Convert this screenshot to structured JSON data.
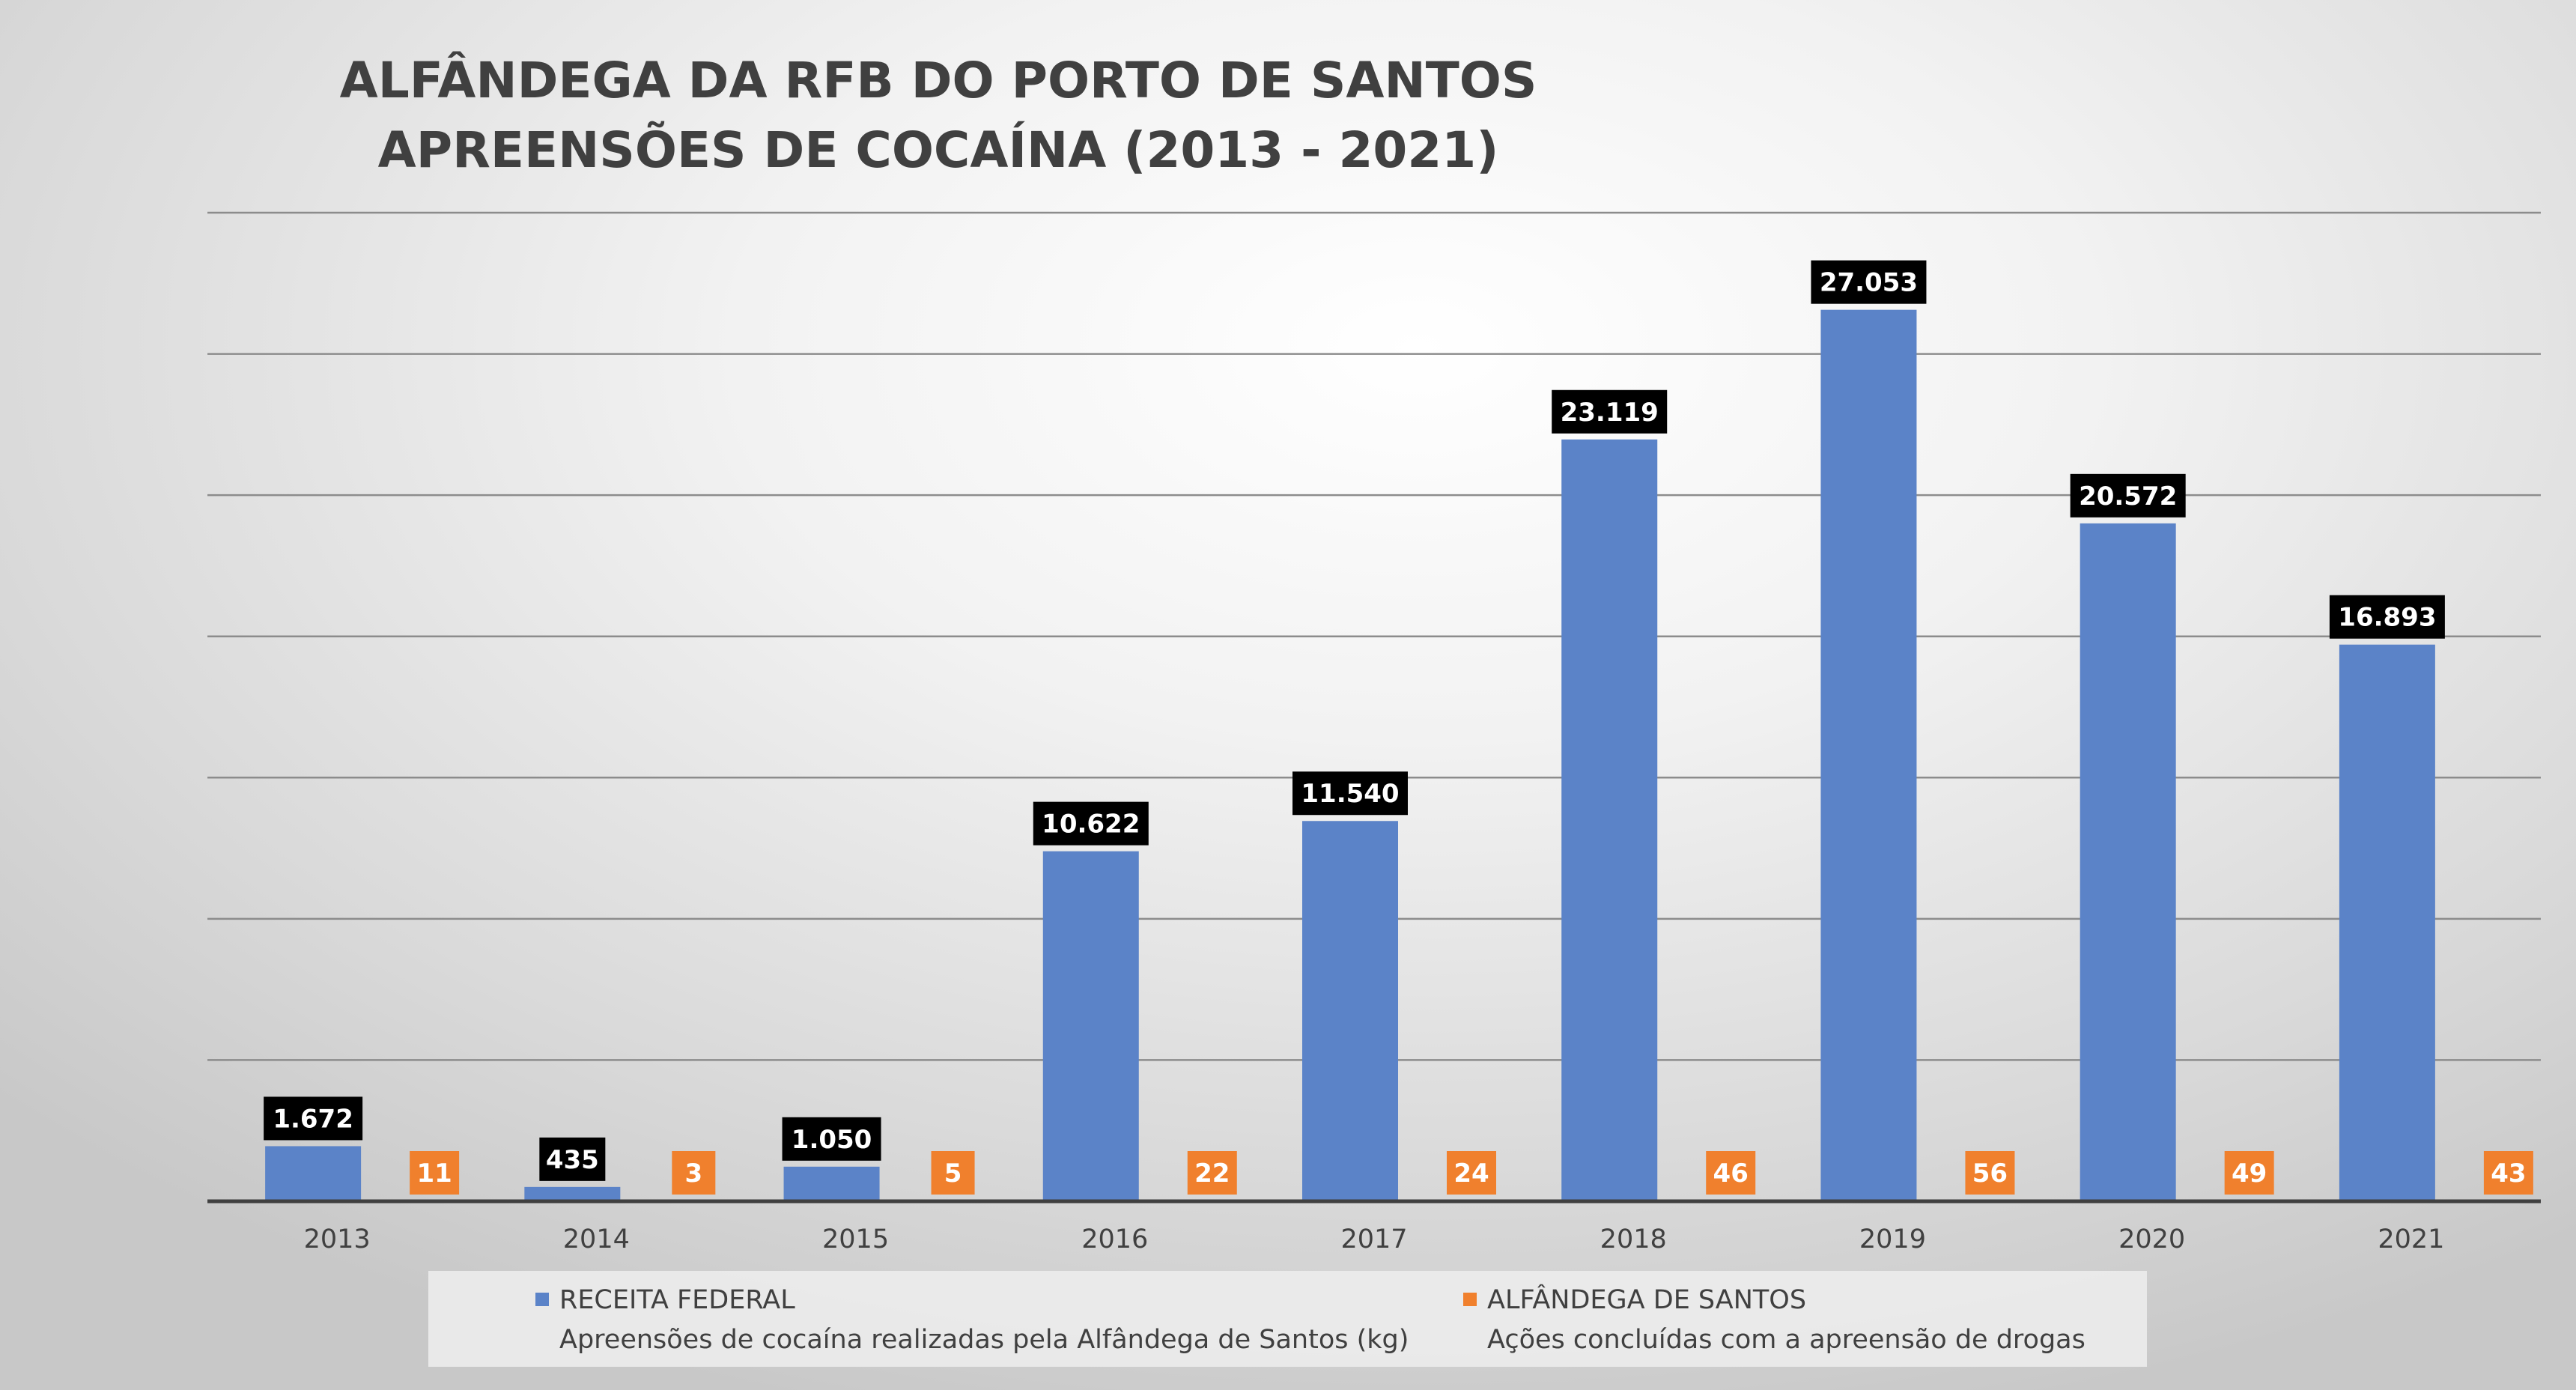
{
  "chart_data": {
    "type": "bar",
    "title_lines": [
      "ALFÂNDEGA DA RFB DO PORTO DE SANTOS",
      "APREENSÕES DE COCAÍNA (2013 - 2021)"
    ],
    "categories": [
      "2013",
      "2014",
      "2015",
      "2016",
      "2017",
      "2018",
      "2019",
      "2020",
      "2021"
    ],
    "series": [
      {
        "name": "RECEITA FEDERAL",
        "description": "Apreensões de cocaína realizadas pela Alfândega de Santos (kg)",
        "color": "#5b83c8",
        "label_bg": "#000000",
        "values": [
          1672,
          435,
          1050,
          10622,
          11540,
          23119,
          27053,
          20572,
          16893
        ],
        "labels": [
          "1.672",
          "435",
          "1.050",
          "10.622",
          "11.540",
          "23.119",
          "27.053",
          "20.572",
          "16.893"
        ]
      },
      {
        "name": "ALFÂNDEGA DE SANTOS",
        "description": "Ações concluídas com a apreensão de drogas",
        "color": "#f0802d",
        "label_bg": "#f0802d",
        "values": [
          11,
          3,
          5,
          22,
          24,
          46,
          56,
          49,
          43
        ],
        "labels": [
          "11",
          "3",
          "5",
          "22",
          "24",
          "46",
          "56",
          "49",
          "43"
        ]
      }
    ],
    "ylim": [
      0,
      30000
    ],
    "gridlines": true,
    "y_tick_labels_visible": false,
    "legend_position": "bottom",
    "xlabel": "",
    "ylabel": ""
  }
}
